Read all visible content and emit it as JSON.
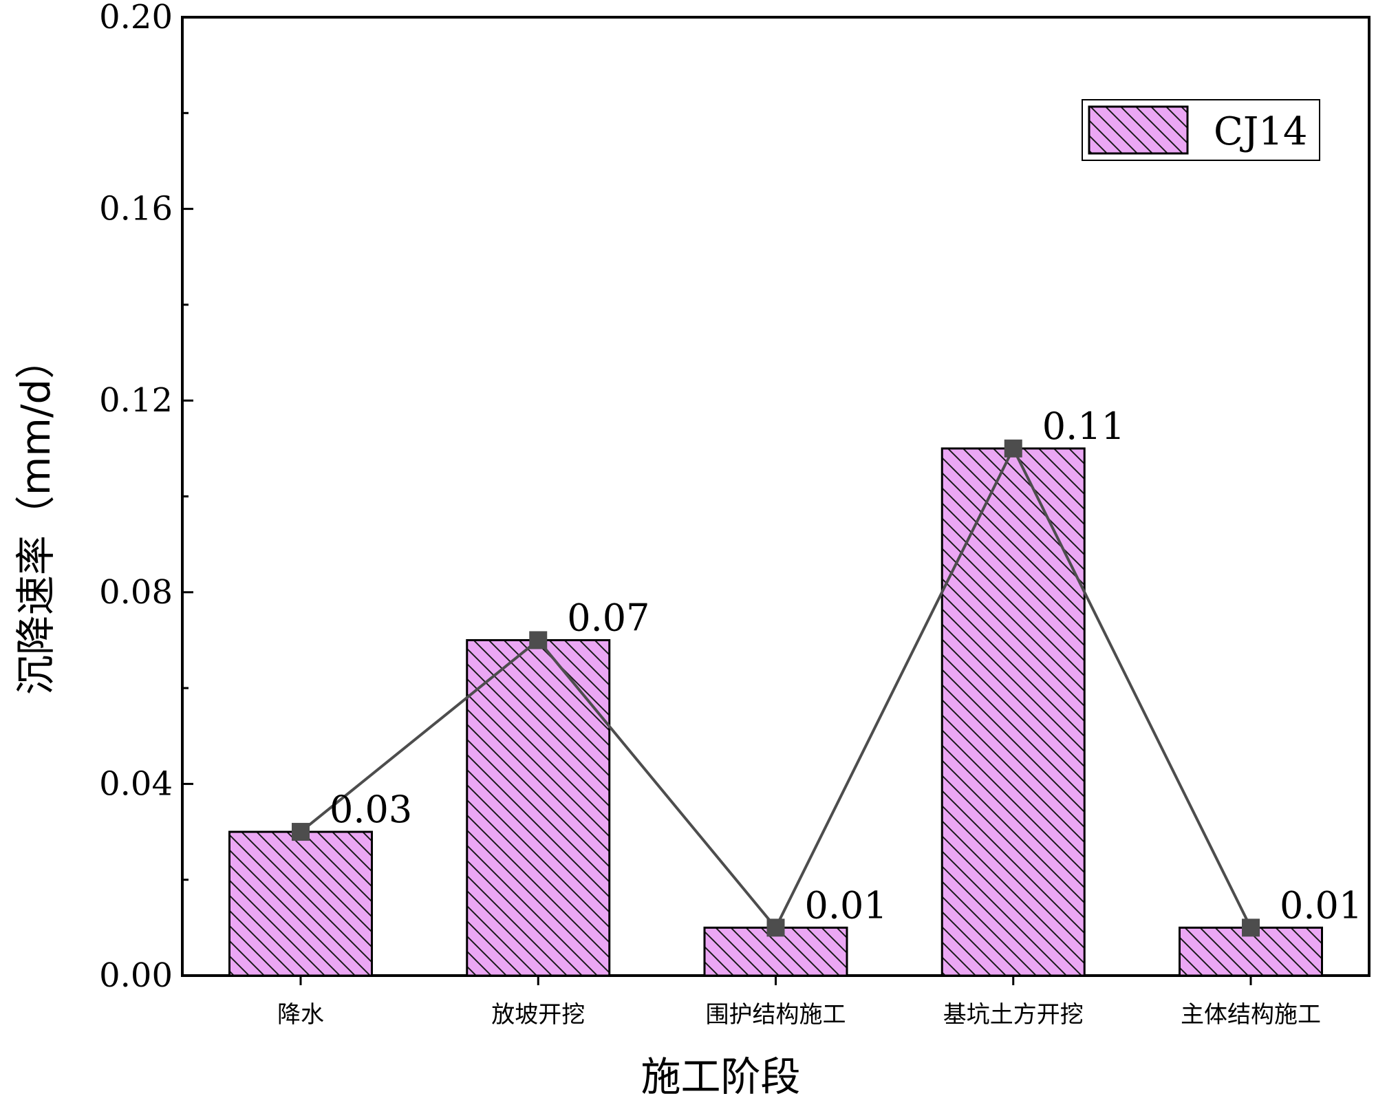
{
  "chart_data": {
    "type": "bar",
    "categories": [
      "降水",
      "放坡开挖",
      "围护结构施工",
      "基坑土方开挖",
      "主体结构施工"
    ],
    "series": [
      {
        "name": "CJ14",
        "values": [
          0.03,
          0.07,
          0.01,
          0.11,
          0.01
        ]
      }
    ],
    "data_labels": [
      "0.03",
      "0.07",
      "0.01",
      "0.11",
      "0.01"
    ],
    "overlay_line": true,
    "xlabel": "施工阶段",
    "ylabel": "沉降速率（mm/d）",
    "ylim": [
      0,
      0.2
    ],
    "yticks": [
      0.0,
      0.04,
      0.08,
      0.12,
      0.16,
      0.2
    ],
    "ytick_labels": [
      "0.00",
      "0.04",
      "0.08",
      "0.12",
      "0.16",
      "0.20"
    ],
    "grid": false,
    "legend_position": "top-right",
    "colors": {
      "bar_fill": "#EBA7F4",
      "bar_hatch": "#1a1a1a",
      "line": "#4d4d4d",
      "marker": "#4d4d4d"
    }
  }
}
